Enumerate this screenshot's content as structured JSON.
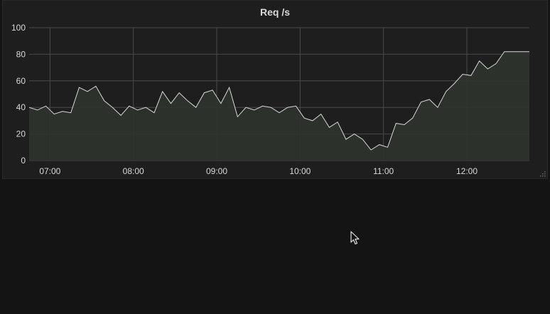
{
  "panel": {
    "title": "Req /s"
  },
  "icons": {
    "resize": "resize-handle-icon",
    "cursor": "mouse-pointer-icon"
  },
  "colors": {
    "background": "#141414",
    "panel_bg": "#1f1e1f",
    "line": "#d8d9da",
    "fill": "#2f332c",
    "grid": "#4a4a4a",
    "text": "#d8d9da"
  },
  "chart_data": {
    "type": "area",
    "title": "Req /s",
    "xlabel": "",
    "ylabel": "",
    "ylim": [
      0,
      100
    ],
    "xlim": [
      "06:45",
      "12:45"
    ],
    "y_ticks": [
      "0",
      "20",
      "40",
      "60",
      "80",
      "100"
    ],
    "x_ticks": [
      "07:00",
      "08:00",
      "09:00",
      "10:00",
      "11:00",
      "12:00"
    ],
    "grid": true,
    "series": [
      {
        "x": [
          "06:45",
          "06:51",
          "06:57",
          "07:03",
          "07:09",
          "07:15",
          "07:21",
          "07:27",
          "07:33",
          "07:39",
          "07:45",
          "07:51",
          "07:57",
          "08:03",
          "08:09",
          "08:15",
          "08:21",
          "08:27",
          "08:33",
          "08:39",
          "08:45",
          "08:51",
          "08:57",
          "09:03",
          "09:09",
          "09:15",
          "09:21",
          "09:27",
          "09:33",
          "09:39",
          "09:45",
          "09:51",
          "09:57",
          "10:03",
          "10:09",
          "10:15",
          "10:21",
          "10:27",
          "10:33",
          "10:39",
          "10:45",
          "10:51",
          "10:57",
          "11:03",
          "11:09",
          "11:15",
          "11:21",
          "11:27",
          "11:33",
          "11:39",
          "11:45",
          "11:51",
          "11:57",
          "12:03",
          "12:09",
          "12:15",
          "12:21",
          "12:27",
          "12:33",
          "12:39",
          "12:45"
        ],
        "values": [
          40,
          38,
          41,
          35,
          37,
          36,
          55,
          52,
          56,
          45,
          40,
          34,
          41,
          38,
          40,
          36,
          52,
          43,
          51,
          45,
          40,
          51,
          53,
          43,
          55,
          33,
          40,
          38,
          41,
          40,
          36,
          40,
          41,
          32,
          30,
          35,
          25,
          29,
          16,
          20,
          16,
          8,
          12,
          10,
          28,
          27,
          32,
          44,
          46,
          40,
          52,
          58,
          65,
          64,
          75,
          69,
          73,
          82,
          82,
          82,
          82
        ]
      }
    ]
  }
}
